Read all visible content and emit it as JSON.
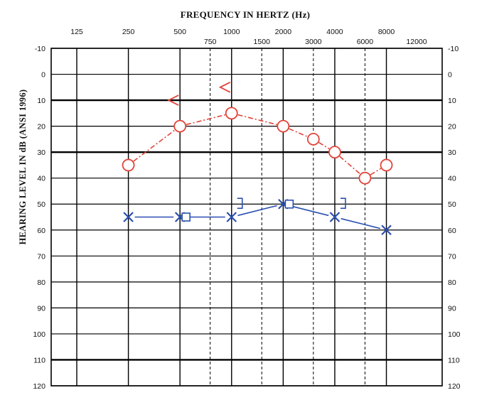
{
  "chart_data": {
    "type": "scatter",
    "title": "FREQUENCY IN HERTZ (Hz)",
    "xlabel": "FREQUENCY IN HERTZ (Hz)",
    "ylabel": "HEARING LEVEL IN dB (ANSI 1996)",
    "x_scale": "log2",
    "xlim": [
      125,
      12000
    ],
    "ylim": [
      -10,
      120
    ],
    "y_inverted": true,
    "x_ticks_major": [
      "125",
      "250",
      "500",
      "1000",
      "2000",
      "4000",
      "8000"
    ],
    "x_ticks_minor": [
      "750",
      "1500",
      "3000",
      "6000",
      "12000"
    ],
    "y_ticks": [
      "-10",
      "0",
      "10",
      "20",
      "30",
      "40",
      "50",
      "60",
      "70",
      "80",
      "90",
      "100",
      "110",
      "120"
    ],
    "grid": true,
    "colors": {
      "right": "#e0443a",
      "left": "#2a4fb0",
      "grid": "#000000"
    },
    "series": [
      {
        "symbol": "circle",
        "color": "#e0443a",
        "dashed": true,
        "points": [
          {
            "x": 250,
            "y": 35
          },
          {
            "x": 500,
            "y": 20
          },
          {
            "x": 1000,
            "y": 15
          },
          {
            "x": 2000,
            "y": 20
          },
          {
            "x": 3000,
            "y": 25
          },
          {
            "x": 4000,
            "y": 30
          },
          {
            "x": 6000,
            "y": 40
          },
          {
            "x": 8000,
            "y": 35
          }
        ]
      },
      {
        "symbol": "less-than",
        "color": "#e0443a",
        "dashed": false,
        "points": [
          {
            "x": 500,
            "y": 10
          },
          {
            "x": 1000,
            "y": 5
          }
        ]
      },
      {
        "symbol": "cross",
        "color": "#2a4fb0",
        "dashed": false,
        "points": [
          {
            "x": 250,
            "y": 55
          },
          {
            "x": 500,
            "y": 55
          },
          {
            "x": 1000,
            "y": 55
          },
          {
            "x": 2000,
            "y": 50
          },
          {
            "x": 4000,
            "y": 55
          },
          {
            "x": 8000,
            "y": 60
          }
        ]
      },
      {
        "symbol": "square",
        "color": "#2a4fb0",
        "dashed": false,
        "points": [
          {
            "x": 500,
            "y": 55
          },
          {
            "x": 2000,
            "y": 50
          }
        ]
      },
      {
        "symbol": "bracket",
        "color": "#2a4fb0",
        "dashed": false,
        "points": [
          {
            "x": 1000,
            "y": 50
          },
          {
            "x": 4000,
            "y": 50
          }
        ]
      }
    ]
  }
}
